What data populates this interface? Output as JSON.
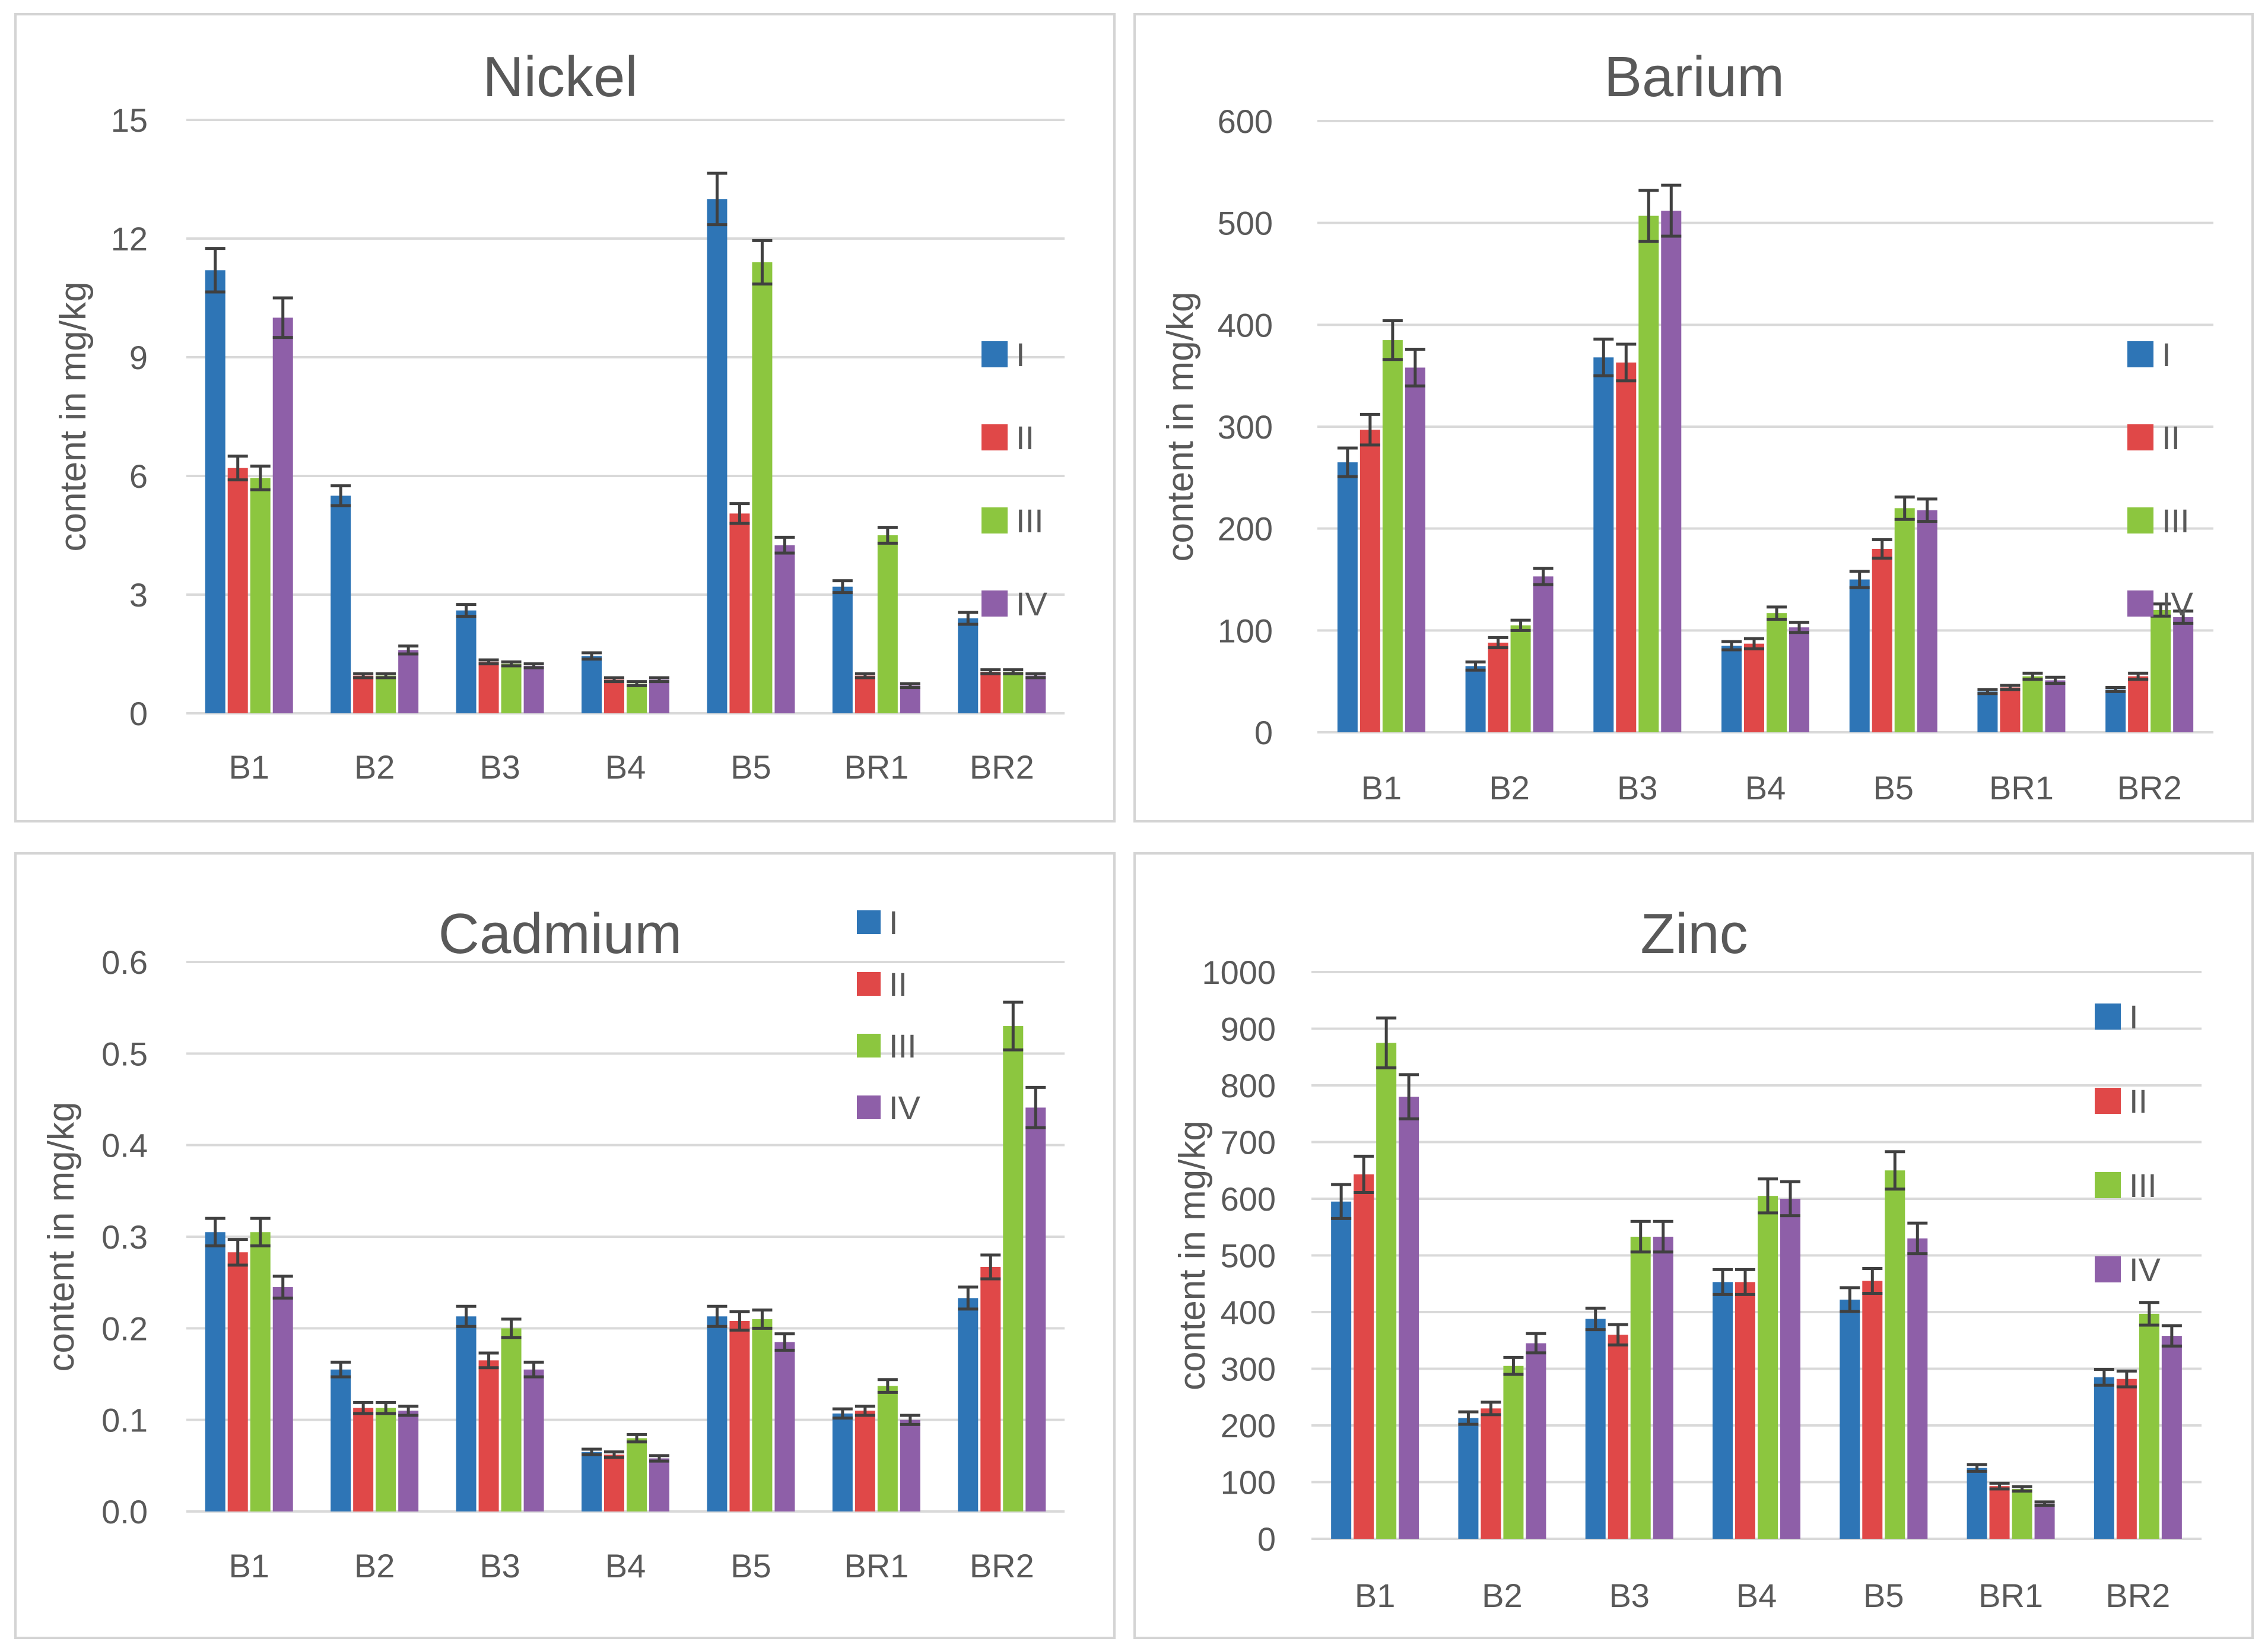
{
  "series_names": [
    "I",
    "II",
    "III",
    "IV"
  ],
  "series_colors": [
    "#2e75b6",
    "#e04848",
    "#8cc63f",
    "#8e5fa8"
  ],
  "categories": [
    "B1",
    "B2",
    "B3",
    "B4",
    "B5",
    "BR1",
    "BR2"
  ],
  "ylabel": "content in mg/kg",
  "chart_data": [
    {
      "type": "bar",
      "title": "Nickel",
      "ylabel": "content in mg/kg",
      "ylim": [
        0,
        15
      ],
      "yticks": [
        0,
        3,
        6,
        9,
        12,
        15
      ],
      "ytick_labels": [
        "0",
        "3",
        "6",
        "9",
        "12",
        "15"
      ],
      "categories": [
        "B1",
        "B2",
        "B3",
        "B4",
        "B5",
        "BR1",
        "BR2"
      ],
      "legend_position": "right",
      "series": [
        {
          "name": "I",
          "values": [
            11.2,
            5.5,
            2.6,
            1.45,
            13.0,
            3.2,
            2.4
          ],
          "errors": [
            0.55,
            0.25,
            0.15,
            0.08,
            0.65,
            0.15,
            0.15
          ]
        },
        {
          "name": "II",
          "values": [
            6.2,
            0.95,
            1.3,
            0.85,
            5.05,
            0.95,
            1.05
          ],
          "errors": [
            0.3,
            0.05,
            0.05,
            0.05,
            0.25,
            0.05,
            0.05
          ]
        },
        {
          "name": "III",
          "values": [
            5.95,
            0.95,
            1.25,
            0.75,
            11.4,
            4.5,
            1.05
          ],
          "errors": [
            0.3,
            0.05,
            0.05,
            0.05,
            0.55,
            0.2,
            0.05
          ]
        },
        {
          "name": "IV",
          "values": [
            10.0,
            1.6,
            1.2,
            0.85,
            4.25,
            0.7,
            0.95
          ],
          "errors": [
            0.5,
            0.1,
            0.05,
            0.05,
            0.2,
            0.05,
            0.05
          ]
        }
      ]
    },
    {
      "type": "bar",
      "title": "Barium",
      "ylabel": "content in mg/kg",
      "ylim": [
        0,
        600
      ],
      "yticks": [
        0,
        100,
        200,
        300,
        400,
        500,
        600
      ],
      "ytick_labels": [
        "0",
        "100",
        "200",
        "300",
        "400",
        "500",
        "600"
      ],
      "categories": [
        "B1",
        "B2",
        "B3",
        "B4",
        "B5",
        "BR1",
        "BR2"
      ],
      "legend_position": "right",
      "series": [
        {
          "name": "I",
          "values": [
            265,
            65,
            368,
            85,
            150,
            40,
            42
          ],
          "errors": [
            14,
            4,
            18,
            4,
            8,
            2,
            2
          ]
        },
        {
          "name": "II",
          "values": [
            297,
            88,
            363,
            87,
            180,
            44,
            55
          ],
          "errors": [
            15,
            5,
            18,
            5,
            9,
            2,
            3
          ]
        },
        {
          "name": "III",
          "values": [
            385,
            105,
            507,
            117,
            220,
            55,
            120
          ],
          "errors": [
            19,
            5,
            25,
            6,
            11,
            3,
            6
          ]
        },
        {
          "name": "IV",
          "values": [
            358,
            153,
            512,
            103,
            218,
            51,
            113
          ],
          "errors": [
            18,
            8,
            25,
            5,
            11,
            3,
            6
          ]
        }
      ]
    },
    {
      "type": "bar",
      "title": "Cadmium",
      "ylabel": "content in mg/kg",
      "ylim": [
        0,
        0.6
      ],
      "yticks": [
        0,
        0.1,
        0.2,
        0.3,
        0.4,
        0.5,
        0.6
      ],
      "ytick_labels": [
        "0.0",
        "0.1",
        "0.2",
        "0.3",
        "0.4",
        "0.5",
        "0.6"
      ],
      "categories": [
        "B1",
        "B2",
        "B3",
        "B4",
        "B5",
        "BR1",
        "BR2"
      ],
      "legend_position": "top-right",
      "series": [
        {
          "name": "I",
          "values": [
            0.305,
            0.155,
            0.213,
            0.065,
            0.213,
            0.107,
            0.233
          ],
          "errors": [
            0.015,
            0.008,
            0.011,
            0.003,
            0.011,
            0.005,
            0.012
          ]
        },
        {
          "name": "II",
          "values": [
            0.283,
            0.113,
            0.165,
            0.062,
            0.208,
            0.11,
            0.267
          ],
          "errors": [
            0.014,
            0.006,
            0.008,
            0.003,
            0.01,
            0.005,
            0.013
          ]
        },
        {
          "name": "III",
          "values": [
            0.305,
            0.113,
            0.2,
            0.08,
            0.21,
            0.137,
            0.53
          ],
          "errors": [
            0.015,
            0.006,
            0.01,
            0.004,
            0.01,
            0.007,
            0.026
          ]
        },
        {
          "name": "IV",
          "values": [
            0.245,
            0.11,
            0.155,
            0.058,
            0.185,
            0.1,
            0.441
          ],
          "errors": [
            0.012,
            0.005,
            0.008,
            0.003,
            0.009,
            0.005,
            0.022
          ]
        }
      ]
    },
    {
      "type": "bar",
      "title": "Zinc",
      "ylabel": "content in mg/kg",
      "ylim": [
        0,
        1000
      ],
      "yticks": [
        0,
        100,
        200,
        300,
        400,
        500,
        600,
        700,
        800,
        900,
        1000
      ],
      "ytick_labels": [
        "0",
        "100",
        "200",
        "300",
        "400",
        "500",
        "600",
        "700",
        "800",
        "900",
        "1000"
      ],
      "categories": [
        "B1",
        "B2",
        "B3",
        "B4",
        "B5",
        "BR1",
        "BR2"
      ],
      "legend_position": "right",
      "series": [
        {
          "name": "I",
          "values": [
            595,
            213,
            388,
            453,
            422,
            125,
            285
          ],
          "errors": [
            30,
            11,
            19,
            22,
            21,
            6,
            14
          ]
        },
        {
          "name": "II",
          "values": [
            643,
            230,
            360,
            453,
            455,
            93,
            282
          ],
          "errors": [
            32,
            11,
            18,
            22,
            22,
            5,
            14
          ]
        },
        {
          "name": "III",
          "values": [
            875,
            305,
            533,
            605,
            650,
            88,
            397
          ],
          "errors": [
            44,
            15,
            27,
            30,
            33,
            4,
            20
          ]
        },
        {
          "name": "IV",
          "values": [
            780,
            345,
            533,
            600,
            530,
            62,
            358
          ],
          "errors": [
            39,
            17,
            27,
            30,
            27,
            3,
            18
          ]
        }
      ]
    }
  ]
}
